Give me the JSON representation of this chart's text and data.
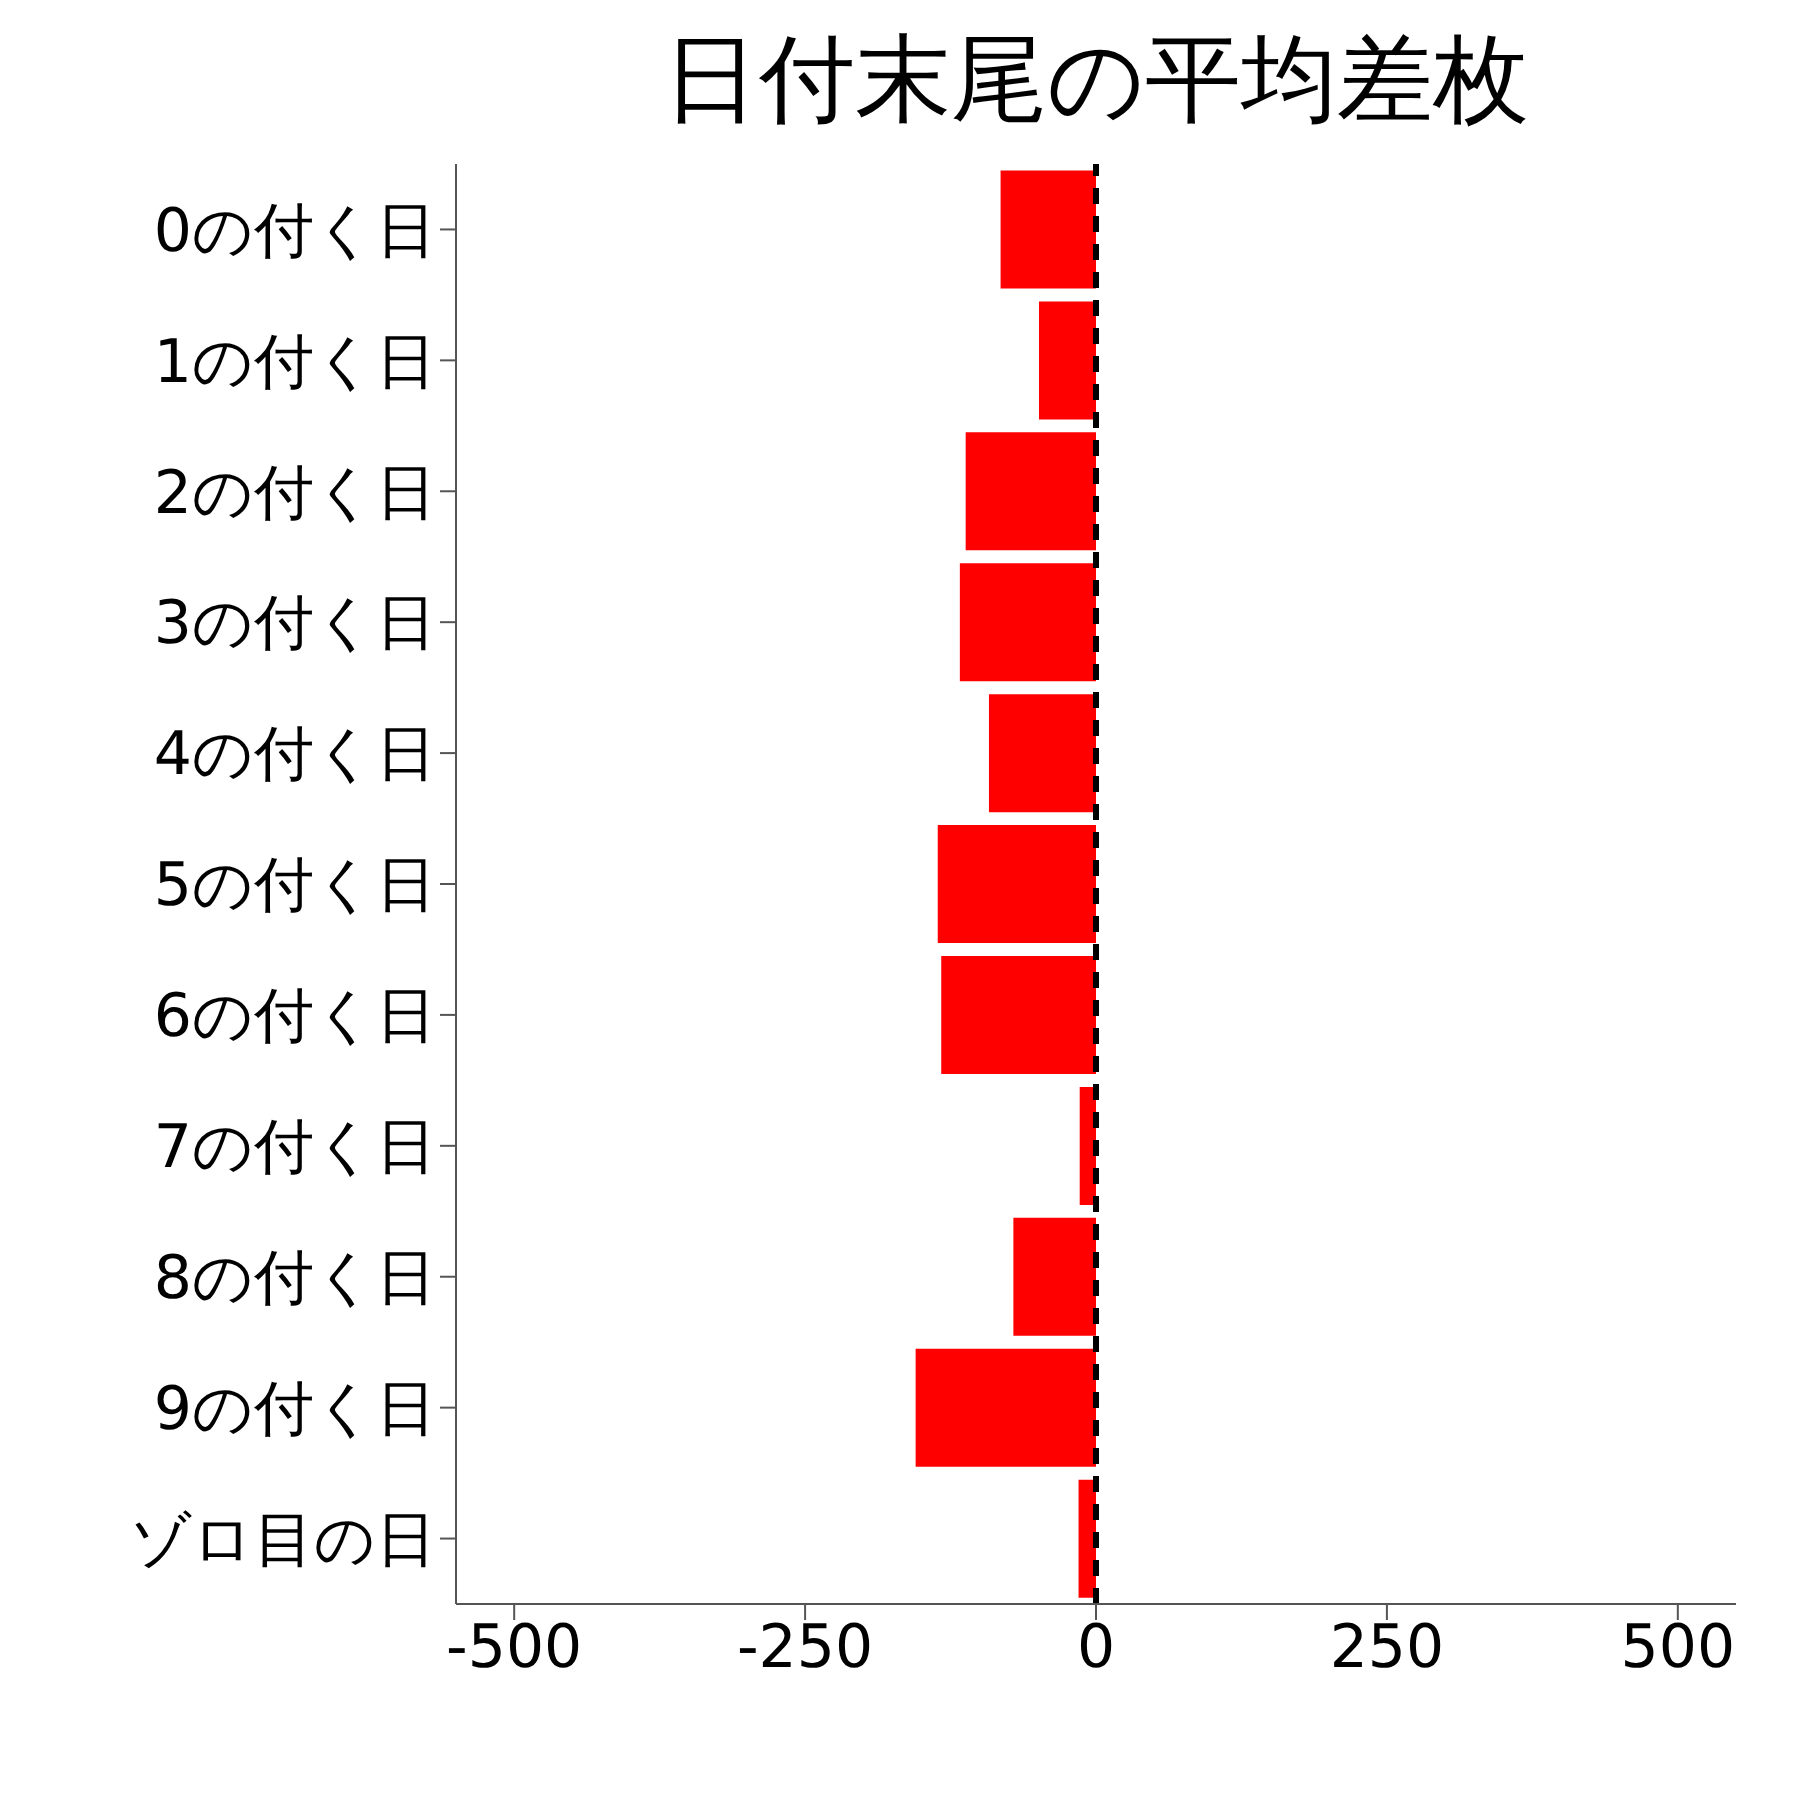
{
  "chart_data": {
    "type": "bar",
    "orientation": "horizontal",
    "title": "日付末尾の平均差枚",
    "categories": [
      "0の付く日",
      "1の付く日",
      "2の付く日",
      "3の付く日",
      "4の付く日",
      "5の付く日",
      "6の付く日",
      "7の付く日",
      "8の付く日",
      "9の付く日",
      "ゾロ目の日"
    ],
    "values": [
      -82,
      -49,
      -112,
      -117,
      -92,
      -136,
      -133,
      -14,
      -71,
      -155,
      -15
    ],
    "color": "#ff0000",
    "xlim": [
      -550,
      550
    ],
    "xticks": [
      -500,
      -250,
      0,
      250,
      500
    ],
    "ref_lines": [
      {
        "axis": "x",
        "value": 0,
        "color": "#000000",
        "line_style": "dashed"
      }
    ],
    "grid": false,
    "legend": false
  }
}
